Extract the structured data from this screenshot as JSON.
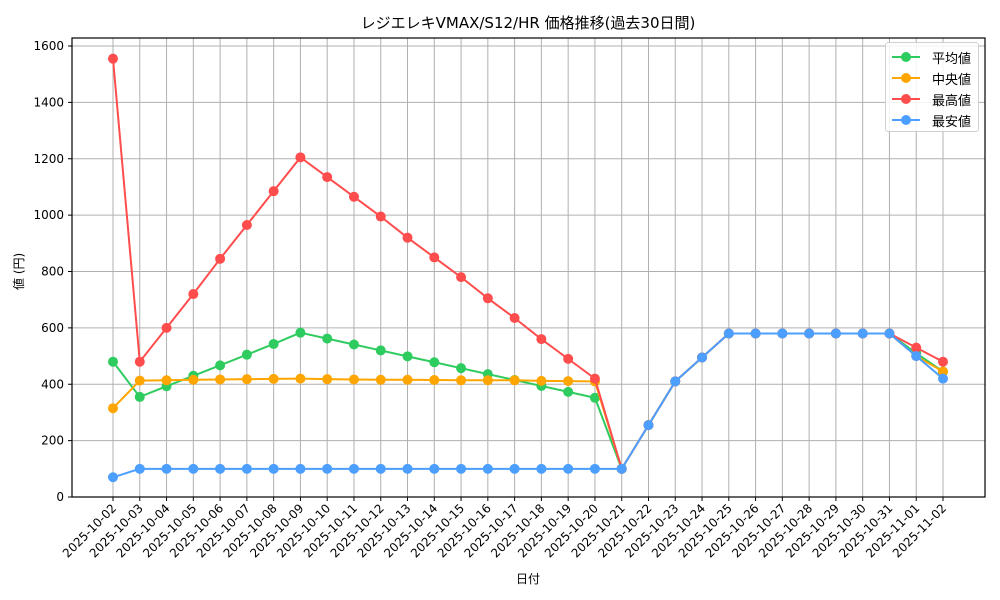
{
  "chart_data": {
    "type": "line",
    "title": "レジエレキVMAX/S12/HR 価格推移(過去30日間)",
    "xlabel": "日付",
    "ylabel": "値 (円)",
    "ylim": [
      0,
      1600
    ],
    "yticks": [
      0,
      200,
      400,
      600,
      800,
      1000,
      1200,
      1400,
      1600
    ],
    "grid": true,
    "legend_position": "upper right",
    "x": [
      "2025-10-02",
      "2025-10-03",
      "2025-10-04",
      "2025-10-05",
      "2025-10-06",
      "2025-10-07",
      "2025-10-08",
      "2025-10-09",
      "2025-10-10",
      "2025-10-11",
      "2025-10-12",
      "2025-10-13",
      "2025-10-14",
      "2025-10-15",
      "2025-10-16",
      "2025-10-17",
      "2025-10-18",
      "2025-10-19",
      "2025-10-20",
      "2025-10-21",
      "2025-10-22",
      "2025-10-23",
      "2025-10-24",
      "2025-10-25",
      "2025-10-26",
      "2025-10-27",
      "2025-10-28",
      "2025-10-29",
      "2025-10-30",
      "2025-10-31",
      "2025-11-01",
      "2025-11-02"
    ],
    "series": [
      {
        "name": "平均値",
        "color": "#2ecc5f",
        "values": [
          480,
          355,
          393,
          430,
          467,
          505,
          543,
          583,
          562,
          541,
          520,
          499,
          478,
          457,
          436,
          415,
          394,
          373,
          352,
          100,
          255,
          410,
          495,
          580,
          580,
          580,
          580,
          580,
          580,
          580,
          510,
          445
        ]
      },
      {
        "name": "中央値",
        "color": "#ffa500",
        "values": [
          315,
          413,
          414,
          416,
          417,
          418,
          419,
          420,
          418,
          417,
          416,
          416,
          415,
          414,
          414,
          414,
          412,
          411,
          410,
          100,
          255,
          410,
          495,
          580,
          580,
          580,
          580,
          580,
          580,
          580,
          500,
          445
        ]
      },
      {
        "name": "最高値",
        "color": "#ff4d4d",
        "values": [
          1555,
          480,
          600,
          720,
          845,
          965,
          1085,
          1205,
          1135,
          1065,
          995,
          920,
          850,
          780,
          705,
          635,
          560,
          490,
          420,
          100,
          255,
          410,
          495,
          580,
          580,
          580,
          580,
          580,
          580,
          580,
          530,
          480
        ]
      },
      {
        "name": "最安値",
        "color": "#4d9fff",
        "values": [
          70,
          100,
          100,
          100,
          100,
          100,
          100,
          100,
          100,
          100,
          100,
          100,
          100,
          100,
          100,
          100,
          100,
          100,
          100,
          100,
          255,
          410,
          495,
          580,
          580,
          580,
          580,
          580,
          580,
          580,
          500,
          420
        ]
      }
    ]
  },
  "legend": {
    "items": [
      {
        "label": "平均値",
        "color": "#2ecc5f"
      },
      {
        "label": "中央値",
        "color": "#ffa500"
      },
      {
        "label": "最高値",
        "color": "#ff4d4d"
      },
      {
        "label": "最安値",
        "color": "#4d9fff"
      }
    ]
  }
}
